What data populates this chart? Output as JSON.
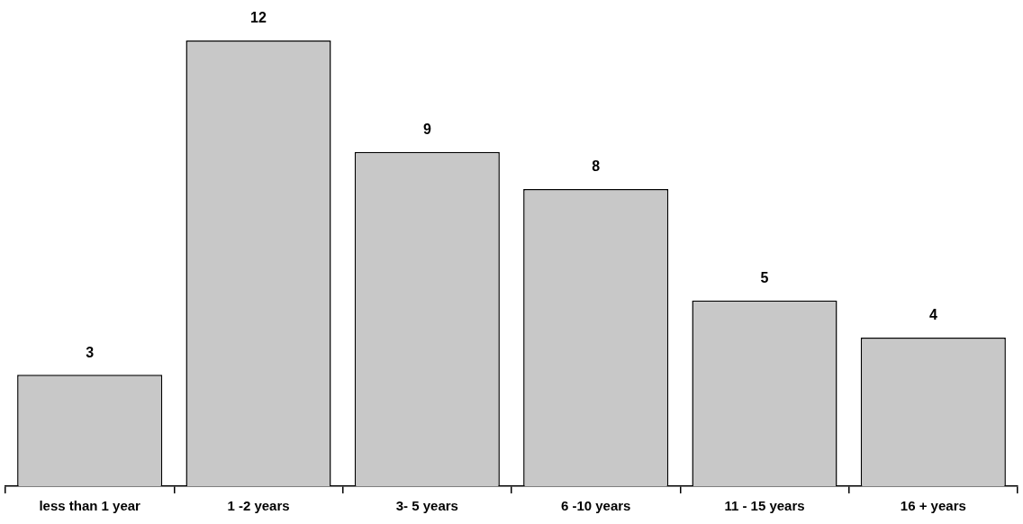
{
  "chart_data": {
    "type": "bar",
    "categories": [
      "less than 1 year",
      "1 -2 years",
      "3- 5 years",
      "6 -10 years",
      "11 - 15 years",
      "16 + years"
    ],
    "values": [
      3,
      12,
      9,
      8,
      5,
      4
    ],
    "color": "#c8c8c8",
    "data_labels": true,
    "grid": false,
    "legend": false
  }
}
